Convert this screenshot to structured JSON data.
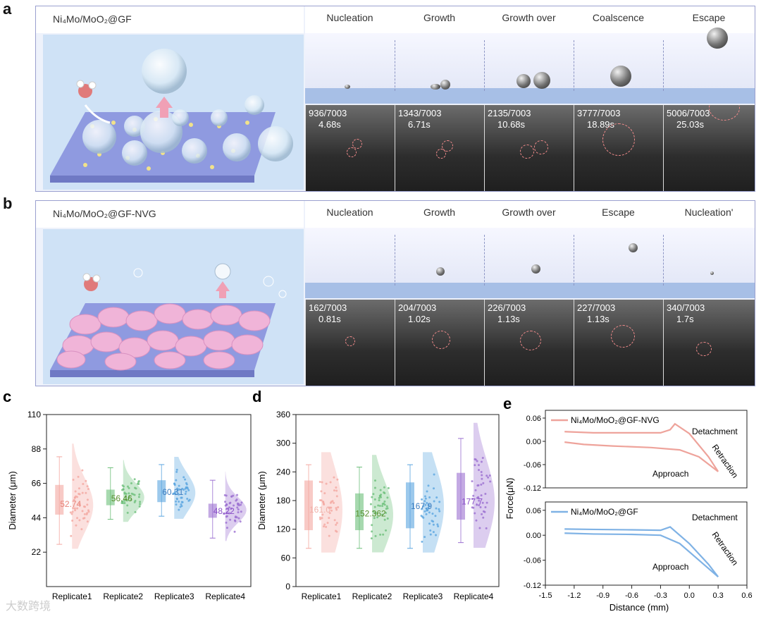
{
  "panel_a": {
    "letter": "a",
    "title": "Ni₄Mo/MoO₂@GF",
    "stages": [
      "Nucleation",
      "Growth",
      "Growth over",
      "Coalscence",
      "Escape"
    ],
    "frames": [
      {
        "frame": "936/7003",
        "time": "4.68s"
      },
      {
        "frame": "1343/7003",
        "time": "6.71s"
      },
      {
        "frame": "2135/7003",
        "time": "10.68s"
      },
      {
        "frame": "3777/7003",
        "time": "18.89s"
      },
      {
        "frame": "5006/7003",
        "time": "25.03s"
      }
    ]
  },
  "panel_b": {
    "letter": "b",
    "title": "Ni₄Mo/MoO₂@GF-NVG",
    "stages": [
      "Nucleation",
      "Growth",
      "Growth over",
      "Escape",
      "Nucleation'"
    ],
    "frames": [
      {
        "frame": "162/7003",
        "time": "0.81s"
      },
      {
        "frame": "204/7003",
        "time": "1.02s"
      },
      {
        "frame": "226/7003",
        "time": "1.13s"
      },
      {
        "frame": "227/7003",
        "time": "1.13s"
      },
      {
        "frame": "340/7003",
        "time": "1.7s"
      }
    ]
  },
  "chart_data": [
    {
      "panel": "c",
      "type": "violin",
      "ylabel": "Diameter (μm)",
      "ylim": [
        0,
        110
      ],
      "yticks": [
        "22",
        "44",
        "66",
        "88",
        "110"
      ],
      "categories": [
        "Replicate1",
        "Replicate2",
        "Replicate3",
        "Replicate4"
      ],
      "means": [
        52.74,
        56.46,
        60.31,
        48.22
      ],
      "mean_labels": [
        "52.74",
        "56.46",
        "60.31",
        "48.22"
      ],
      "colors": [
        "#f4a7a0",
        "#6dbf7a",
        "#5aa5e0",
        "#9b6fd1"
      ],
      "label_colors": [
        "#e8857b",
        "#5a8f2e",
        "#3a7cc0",
        "#8a4fc8"
      ],
      "box": [
        {
          "min": 27,
          "q1": 46,
          "median": 52,
          "q3": 65,
          "max": 83
        },
        {
          "min": 43,
          "q1": 52,
          "median": 57,
          "q3": 62,
          "max": 76
        },
        {
          "min": 45,
          "q1": 54,
          "median": 60,
          "q3": 68,
          "max": 78
        },
        {
          "min": 31,
          "q1": 44,
          "median": 49,
          "q3": 53,
          "max": 68
        }
      ]
    },
    {
      "panel": "d",
      "type": "violin",
      "ylabel": "Diameter (μm)",
      "ylim": [
        0,
        360
      ],
      "yticks": [
        "0",
        "60",
        "120",
        "180",
        "240",
        "300",
        "360"
      ],
      "categories": [
        "Replicate1",
        "Replicate2",
        "Replicate3",
        "Replicate4"
      ],
      "means": [
        161.0,
        152.362,
        167.9,
        177.7
      ],
      "mean_labels": [
        "161.0",
        "152.362",
        "167.9",
        "177.7"
      ],
      "colors": [
        "#f4a7a0",
        "#6dbf7a",
        "#5aa5e0",
        "#9b6fd1"
      ],
      "label_colors": [
        "#f0b0a8",
        "#5a8f2e",
        "#3a7cc0",
        "#8a4fc8"
      ],
      "box": [
        {
          "min": 80,
          "q1": 118,
          "median": 160,
          "q3": 222,
          "max": 255
        },
        {
          "min": 80,
          "q1": 118,
          "median": 150,
          "q3": 195,
          "max": 250
        },
        {
          "min": 80,
          "q1": 122,
          "median": 168,
          "q3": 218,
          "max": 255
        },
        {
          "min": 92,
          "q1": 140,
          "median": 178,
          "q3": 238,
          "max": 310
        }
      ]
    },
    {
      "panel": "e",
      "type": "line",
      "xlabel": "Distance (mm)",
      "ylabel": "Force(μN)",
      "xlim": [
        -1.5,
        0.6
      ],
      "xticks": [
        "-1.5",
        "-1.2",
        "-0.9",
        "-0.6",
        "-0.3",
        "0.0",
        "0.3",
        "0.6"
      ],
      "subplots": [
        {
          "legend": "Ni₄Mo/MoO₂@GF-NVG",
          "color": "#eea39b",
          "ylim": [
            -0.12,
            0.08
          ],
          "yticks": [
            "0.06",
            "0.00",
            "-0.06",
            "-0.12"
          ],
          "annotations": [
            "Detachment",
            "Retraction",
            "Approach"
          ],
          "retraction": {
            "x": [
              -1.3,
              -1.0,
              -0.6,
              -0.3,
              -0.2,
              -0.15,
              0.0,
              0.2,
              0.3
            ],
            "y": [
              0.025,
              0.022,
              0.022,
              0.022,
              0.03,
              0.045,
              0.02,
              -0.04,
              -0.078
            ]
          },
          "approach": {
            "x": [
              -1.3,
              -1.1,
              -0.8,
              -0.4,
              -0.1,
              0.1,
              0.3
            ],
            "y": [
              -0.002,
              -0.008,
              -0.012,
              -0.016,
              -0.022,
              -0.04,
              -0.078
            ]
          }
        },
        {
          "legend": "Ni₄Mo/MoO₂@GF",
          "color": "#7fb2e5",
          "ylim": [
            -0.12,
            0.08
          ],
          "yticks": [
            "0.06",
            "0.00",
            "-0.06",
            "-0.12"
          ],
          "annotations": [
            "Detachment",
            "Retraction",
            "Approach"
          ],
          "retraction": {
            "x": [
              -1.3,
              -1.0,
              -0.6,
              -0.3,
              -0.2,
              0.0,
              0.2,
              0.3
            ],
            "y": [
              0.015,
              0.014,
              0.013,
              0.012,
              0.02,
              -0.02,
              -0.07,
              -0.1
            ]
          },
          "approach": {
            "x": [
              -1.3,
              -1.0,
              -0.6,
              -0.3,
              -0.1,
              0.1,
              0.3
            ],
            "y": [
              0.005,
              0.003,
              0.002,
              0.0,
              -0.02,
              -0.06,
              -0.1
            ]
          }
        }
      ]
    }
  ],
  "watermark": "大数跨境"
}
